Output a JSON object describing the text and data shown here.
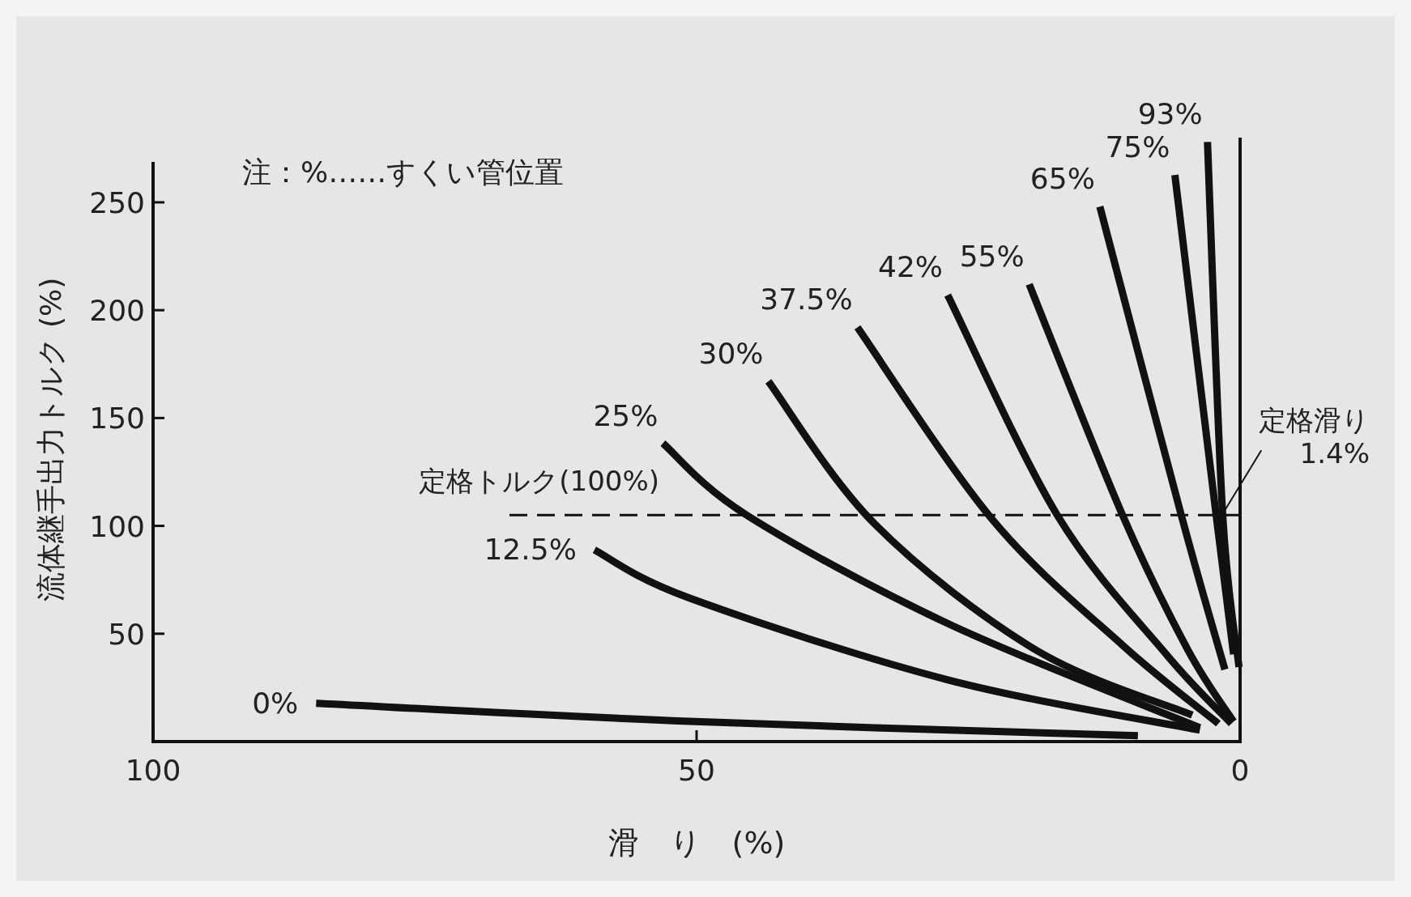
{
  "chart_data": {
    "type": "line",
    "xlabel": "滑　り　(%)",
    "ylabel": "流体継手出力トルク (%)",
    "xlim": [
      100,
      0
    ],
    "xticks": [
      100,
      50,
      0
    ],
    "ylim": [
      0,
      280
    ],
    "yticks": [
      50,
      100,
      150,
      200,
      250
    ],
    "grid": false,
    "marker": "none",
    "line_style": "solid",
    "series": [
      {
        "name": "0%",
        "color": "#111111",
        "x": [
          85.0,
          50.7,
          9.4
        ],
        "values": [
          17.7,
          9.4,
          2.7
        ]
      },
      {
        "name": "12.5%",
        "color": "#111111",
        "x": [
          59.4,
          50.7,
          26.8,
          3.7
        ],
        "values": [
          88.9,
          66.6,
          28.5,
          5.3
        ]
      },
      {
        "name": "25%",
        "color": "#111111",
        "x": [
          53.1,
          45.4,
          26.8,
          3.7
        ],
        "values": [
          138.3,
          105,
          54.5,
          6.4
        ]
      },
      {
        "name": "30%",
        "color": "#111111",
        "x": [
          43.4,
          33.6,
          18.8,
          4.4
        ],
        "values": [
          167,
          100.8,
          42.5,
          12.3
        ]
      },
      {
        "name": "37.5%",
        "color": "#111111",
        "x": [
          35.2,
          22.8,
          10.8,
          2.0
        ],
        "values": [
          192,
          103,
          44.6,
          8.3
        ]
      },
      {
        "name": "42%",
        "color": "#111111",
        "x": [
          26.9,
          16.8,
          6.8,
          0.8
        ],
        "values": [
          207,
          104.8,
          40.5,
          8.3
        ]
      },
      {
        "name": "55%",
        "color": "#111111",
        "x": [
          19.4,
          10.8,
          4.8,
          0.6
        ],
        "values": [
          212,
          104.8,
          42.5,
          9.3
        ]
      },
      {
        "name": "65%",
        "color": "#111111",
        "x": [
          12.9,
          5.4,
          1.4
        ],
        "values": [
          248,
          104.8,
          33.4
        ]
      },
      {
        "name": "75%",
        "color": "#111111",
        "x": [
          6.0,
          2.2,
          0.6
        ],
        "values": [
          262.7,
          104.8,
          40.5
        ]
      },
      {
        "name": "93%",
        "color": "#111111",
        "x": [
          3.0,
          1.6,
          0.1
        ],
        "values": [
          278,
          105,
          34.5
        ]
      }
    ],
    "ref_lines": [
      {
        "axis": "y",
        "value": 105,
        "label": "定格トルク(100%)",
        "line_style": "dashed",
        "color": "#111111"
      }
    ],
    "annotations": [
      "注：%……すくい管位置",
      {
        "text": "定格滑り\n1.4%",
        "x": 1.4,
        "y": 105
      }
    ]
  }
}
